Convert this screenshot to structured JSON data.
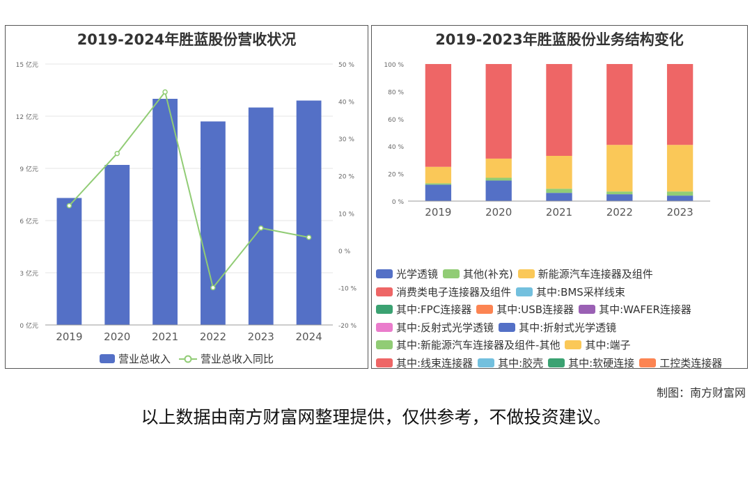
{
  "credit": "制图：南方财富网",
  "disclaimer": "以上数据由南方财富网整理提供，仅供参考，不做投资建议。",
  "chart_data": [
    {
      "type": "bar+line",
      "title": "2019-2024年胜蓝股份营收状况",
      "categories": [
        "2019",
        "2020",
        "2021",
        "2022",
        "2023",
        "2024"
      ],
      "series": [
        {
          "name": "营业总收入",
          "type": "bar",
          "axis": "left",
          "color": "#5470c6",
          "values": [
            7.3,
            9.2,
            13.0,
            11.7,
            12.5,
            12.9
          ]
        },
        {
          "name": "营业总收入同比",
          "type": "line",
          "axis": "right",
          "color": "#91cc75",
          "values": [
            12,
            26,
            42.5,
            -10,
            6,
            3.5
          ]
        }
      ],
      "y_left": {
        "ylim": [
          0,
          15
        ],
        "ticks": [
          0,
          3,
          6,
          9,
          12,
          15
        ],
        "tick_labels": [
          "0 亿元",
          "3 亿元",
          "6 亿元",
          "9 亿元",
          "12 亿元",
          "15 亿元"
        ]
      },
      "y_right": {
        "ylim": [
          -20,
          50
        ],
        "ticks": [
          -20,
          -10,
          0,
          10,
          20,
          30,
          40,
          50
        ],
        "tick_labels": [
          "-20 %",
          "-10 %",
          "0 %",
          "10 %",
          "20 %",
          "30 %",
          "40 %",
          "50 %"
        ]
      },
      "grid": true,
      "legend": "bottom"
    },
    {
      "type": "stacked-bar",
      "title": "2019-2023年胜蓝股份业务结构变化",
      "categories": [
        "2019",
        "2020",
        "2021",
        "2022",
        "2023"
      ],
      "ylim": [
        0,
        100
      ],
      "y_ticks": [
        0,
        20,
        40,
        60,
        80,
        100
      ],
      "y_tick_labels": [
        "0 %",
        "20 %",
        "40 %",
        "60 %",
        "80 %",
        "100 %"
      ],
      "series": [
        {
          "name": "光学透镜",
          "color": "#5470c6",
          "values": [
            12,
            15,
            6,
            5,
            4
          ]
        },
        {
          "name": "其他(补充)",
          "color": "#91cc75",
          "values": [
            1,
            2,
            3,
            2,
            3
          ]
        },
        {
          "name": "新能源汽车连接器及组件",
          "color": "#fac858",
          "values": [
            12,
            14,
            24,
            34,
            34
          ]
        },
        {
          "name": "消费类电子连接器及组件",
          "color": "#ee6666",
          "values": [
            75,
            69,
            67,
            59,
            59
          ]
        }
      ],
      "legend_entries": [
        {
          "name": "光学透镜",
          "color": "#5470c6"
        },
        {
          "name": "其他(补充)",
          "color": "#91cc75"
        },
        {
          "name": "新能源汽车连接器及组件",
          "color": "#fac858"
        },
        {
          "name": "消费类电子连接器及组件",
          "color": "#ee6666"
        },
        {
          "name": "其中:BMS采样线束",
          "color": "#73c0de"
        },
        {
          "name": "其中:FPC连接器",
          "color": "#3ba272"
        },
        {
          "name": "其中:USB连接器",
          "color": "#fc8452"
        },
        {
          "name": "其中:WAFER连接器",
          "color": "#9a60b4"
        },
        {
          "name": "其中:反射式光学透镜",
          "color": "#ea7ccc"
        },
        {
          "name": "其中:折射式光学透镜",
          "color": "#5470c6"
        },
        {
          "name": "其中:新能源汽车连接器及组件-其他",
          "color": "#91cc75"
        },
        {
          "name": "其中:端子",
          "color": "#fac858"
        },
        {
          "name": "其中:线束连接器",
          "color": "#ee6666"
        },
        {
          "name": "其中:胶壳",
          "color": "#73c0de"
        },
        {
          "name": "其中:软硬连接",
          "color": "#3ba272"
        },
        {
          "name": "工控类连接器",
          "color": "#fc8452"
        }
      ],
      "legend_rows": [
        [
          0,
          1,
          2
        ],
        [
          3,
          4
        ],
        [
          5,
          6,
          7
        ],
        [
          8,
          9
        ],
        [
          10,
          11
        ],
        [
          12,
          13,
          14,
          15
        ]
      ],
      "grid": false,
      "legend": "bottom"
    }
  ]
}
